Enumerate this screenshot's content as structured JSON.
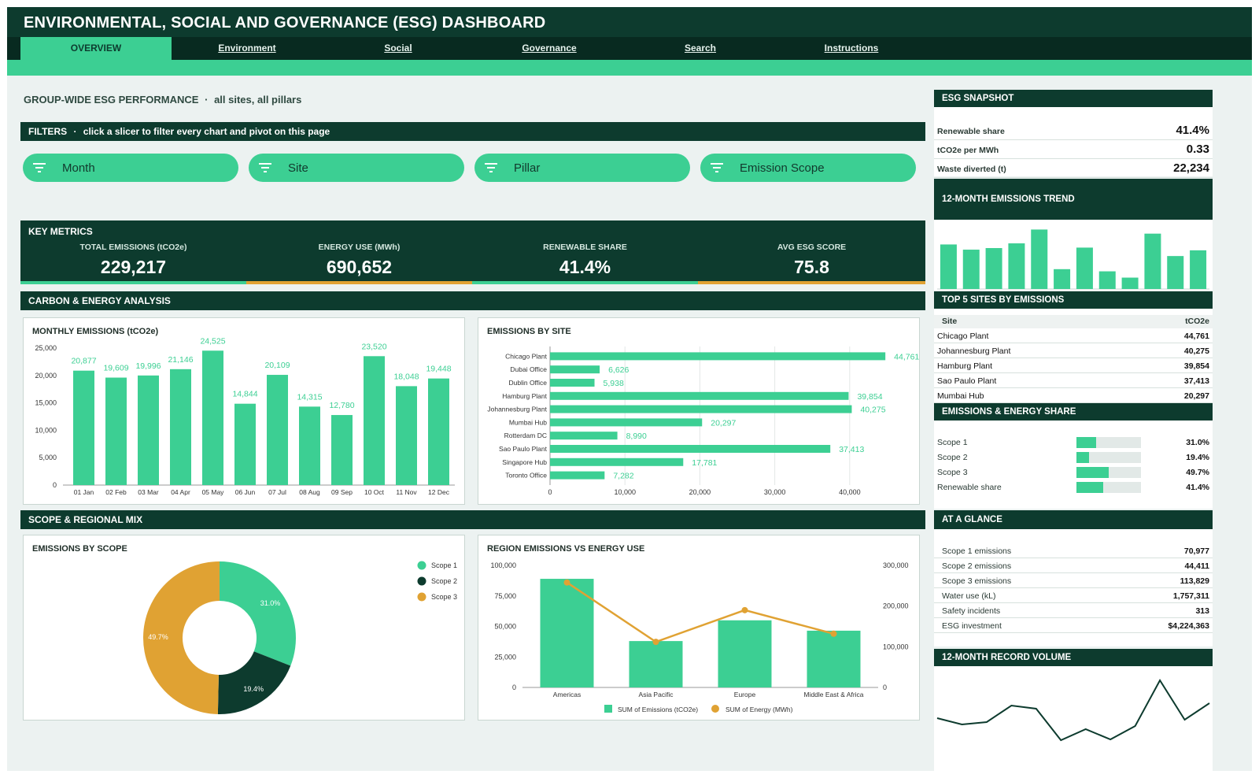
{
  "header": {
    "title": "ENVIRONMENTAL, SOCIAL AND GOVERNANCE (ESG) DASHBOARD"
  },
  "nav": {
    "tabs": [
      {
        "label": "OVERVIEW",
        "active": true
      },
      {
        "label": "Environment"
      },
      {
        "label": "Social"
      },
      {
        "label": "Governance"
      },
      {
        "label": "Search"
      },
      {
        "label": "Instructions"
      }
    ]
  },
  "page": {
    "heading": "GROUP-WIDE ESG PERFORMANCE",
    "separator": "·",
    "scope_note": "all sites, all pillars"
  },
  "filters": {
    "title": "FILTERS",
    "separator": "·",
    "note": "click a slicer to filter every chart and pivot on this page",
    "slicers": [
      "Month",
      "Site",
      "Pillar",
      "Emission Scope"
    ],
    "icon": "filter-icon"
  },
  "key_metrics": {
    "title": "KEY METRICS",
    "items": [
      {
        "label": "TOTAL EMISSIONS (tCO2e)",
        "value": "229,217",
        "accent": "#3ccf93"
      },
      {
        "label": "ENERGY USE (MWh)",
        "value": "690,652",
        "accent": "#e0a233"
      },
      {
        "label": "RENEWABLE SHARE",
        "value": "41.4%",
        "accent": "#3ccf93"
      },
      {
        "label": "AVG ESG SCORE",
        "value": "75.8",
        "accent": "#e0a233"
      }
    ]
  },
  "sections": {
    "carbon": "CARBON & ENERGY ANALYSIS",
    "scope": "SCOPE & REGIONAL MIX"
  },
  "colors": {
    "primary_dark": "#0d3b2e",
    "accent_green": "#3ccf93",
    "accent_gold": "#e0a233"
  },
  "chart_data": [
    {
      "id": "monthly_emissions",
      "type": "bar",
      "title": "MONTHLY EMISSIONS (tCO2e)",
      "categories": [
        "01 Jan",
        "02 Feb",
        "03 Mar",
        "04 Apr",
        "05 May",
        "06 Jun",
        "07 Jul",
        "08 Aug",
        "09 Sep",
        "10 Oct",
        "11 Nov",
        "12 Dec"
      ],
      "values": [
        20877,
        19609,
        19996,
        21146,
        24525,
        14844,
        20109,
        14315,
        12780,
        23520,
        18048,
        19448
      ],
      "data_labels": [
        "20,877",
        "19,609",
        "19,996",
        "21,146",
        "24,525",
        "14,844",
        "20,109",
        "14,315",
        "12,780",
        "23,520",
        "18,048",
        "19,448"
      ],
      "y_ticks": [
        "0",
        "5,000",
        "10,000",
        "15,000",
        "20,000",
        "25,000"
      ],
      "ylim": [
        0,
        25000
      ],
      "grid": false
    },
    {
      "id": "emissions_by_site",
      "type": "bar",
      "orientation": "horizontal",
      "title": "EMISSIONS BY SITE",
      "categories": [
        "Chicago Plant",
        "Dubai Office",
        "Dublin Office",
        "Hamburg Plant",
        "Johannesburg Plant",
        "Mumbai Hub",
        "Rotterdam DC",
        "Sao Paulo Plant",
        "Singapore Hub",
        "Toronto Office"
      ],
      "values": [
        44761,
        6626,
        5938,
        39854,
        40275,
        20297,
        8990,
        37413,
        17781,
        7282
      ],
      "data_labels": [
        "44,761",
        "6,626",
        "5,938",
        "39,854",
        "40,275",
        "20,297",
        "8,990",
        "37,413",
        "17,781",
        "7,282"
      ],
      "x_ticks": [
        "0",
        "10,000",
        "20,000",
        "30,000",
        "40,000"
      ],
      "xlim": [
        0,
        48000
      ],
      "grid": true
    },
    {
      "id": "emissions_by_scope",
      "type": "pie",
      "title": "EMISSIONS BY SCOPE",
      "labels": [
        "Scope 1",
        "Scope 2",
        "Scope 3"
      ],
      "values": [
        31.0,
        19.4,
        49.7
      ],
      "data_labels": [
        "31.0%",
        "19.4%",
        "49.7%"
      ],
      "colors": [
        "#3ccf93",
        "#0d3b2e",
        "#e0a233"
      ],
      "donut": true,
      "legend": "top-right"
    },
    {
      "id": "region_emissions_energy",
      "type": "bar",
      "title": "REGION EMISSIONS VS ENERGY USE",
      "categories": [
        "Americas",
        "Asia Pacific",
        "Europe",
        "Middle East & Africa"
      ],
      "series": [
        {
          "name": "SUM of Emissions (tCO2e)",
          "type": "bar",
          "axis": "left",
          "values": [
            89000,
            38000,
            55000,
            46500
          ]
        },
        {
          "name": "SUM of Energy (MWh)",
          "type": "line",
          "axis": "right",
          "values": [
            258000,
            112000,
            190000,
            132000
          ]
        }
      ],
      "y_left_ticks": [
        "0",
        "25,000",
        "50,000",
        "75,000",
        "100,000"
      ],
      "y_left_lim": [
        0,
        100000
      ],
      "y_right_ticks": [
        "0",
        "100,000",
        "200,000",
        "300,000"
      ],
      "y_right_lim": [
        0,
        300000
      ],
      "legend": "bottom"
    },
    {
      "id": "emissions_trend",
      "type": "bar",
      "title": "12-MONTH EMISSIONS TREND",
      "values": [
        20877,
        19609,
        19996,
        21146,
        24525,
        14844,
        20109,
        14315,
        12780,
        23520,
        18048,
        19448
      ],
      "ylim": [
        10000,
        25000
      ]
    },
    {
      "id": "record_volume",
      "type": "line",
      "title": "12-MONTH RECORD VOLUME",
      "values": [
        42,
        34,
        37,
        58,
        54,
        14,
        28,
        15,
        32,
        90,
        40,
        61
      ],
      "ylim": [
        0,
        100
      ]
    }
  ],
  "snapshot": {
    "title": "ESG SNAPSHOT",
    "rows": [
      {
        "label": "Renewable share",
        "value": "41.4%"
      },
      {
        "label": "tCO2e per MWh",
        "value": "0.33"
      },
      {
        "label": "Waste diverted (t)",
        "value": "22,234"
      }
    ]
  },
  "top_sites": {
    "title": "TOP 5 SITES BY EMISSIONS",
    "headers": [
      "Site",
      "tCO2e"
    ],
    "rows": [
      [
        "Chicago Plant",
        "44,761"
      ],
      [
        "Johannesburg Plant",
        "40,275"
      ],
      [
        "Hamburg Plant",
        "39,854"
      ],
      [
        "Sao Paulo Plant",
        "37,413"
      ],
      [
        "Mumbai Hub",
        "20,297"
      ]
    ]
  },
  "energy_share": {
    "title": "EMISSIONS & ENERGY SHARE",
    "rows": [
      {
        "label": "Scope 1",
        "value": "31.0%",
        "fraction": 0.31
      },
      {
        "label": "Scope 2",
        "value": "19.4%",
        "fraction": 0.194
      },
      {
        "label": "Scope 3",
        "value": "49.7%",
        "fraction": 0.497
      },
      {
        "label": "Renewable share",
        "value": "41.4%",
        "fraction": 0.414
      }
    ]
  },
  "glance": {
    "title": "AT A GLANCE",
    "rows": [
      [
        "Scope 1 emissions",
        "70,977"
      ],
      [
        "Scope 2 emissions",
        "44,411"
      ],
      [
        "Scope 3 emissions",
        "113,829"
      ],
      [
        "Water use (kL)",
        "1,757,311"
      ],
      [
        "Safety incidents",
        "313"
      ],
      [
        "ESG investment",
        "$4,224,363"
      ]
    ]
  }
}
